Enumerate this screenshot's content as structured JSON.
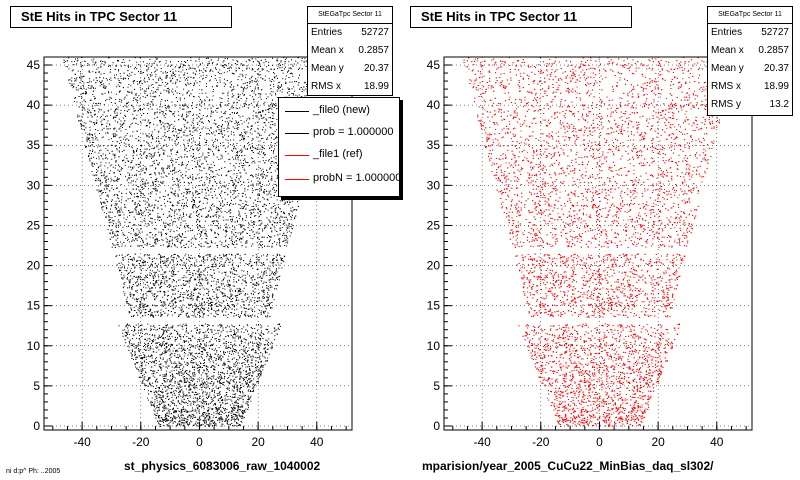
{
  "chart_data": [
    {
      "type": "scatter",
      "title": "StE Hits in TPC Sector 11",
      "xlabel": "st_physics_6083006_raw_1040002",
      "ylabel": "",
      "xlim": [
        -53,
        52
      ],
      "ylim": [
        -0.5,
        46
      ],
      "x_ticks": [
        "-40",
        "-20",
        "0",
        "20",
        "40"
      ],
      "y_ticks": [
        "0",
        "5",
        "10",
        "15",
        "20",
        "25",
        "30",
        "35",
        "40",
        "45"
      ],
      "marker_color": "#000000",
      "grid": true,
      "stats": {
        "header": "StEGaTpc Sector 11",
        "entries": [
          {
            "label": "Entries",
            "value": "52727"
          },
          {
            "label": "Mean x",
            "value": "0.2857"
          },
          {
            "label": "Mean y",
            "value": "20.37"
          },
          {
            "label": "RMS x",
            "value": "18.99"
          }
        ]
      },
      "legend": {
        "placement": "right",
        "entries": [
          {
            "label": "_file0 (new)",
            "color": "#000000"
          },
          {
            "label": "prob = 1.000000",
            "color": "#000000"
          },
          {
            "label": "_file1 (ref)",
            "color": "#ff0000"
          },
          {
            "label": "probN = 1.000000",
            "color": "#ff0000"
          }
        ]
      },
      "series": [
        {
          "shape": "trapezoid",
          "y_range": [
            0,
            46
          ],
          "x_half_width_bottom": 14,
          "x_half_width_top": 47,
          "gap_y": [
            12.8,
            13.6
          ]
        }
      ]
    },
    {
      "type": "scatter",
      "title": "StE Hits in TPC Sector 11",
      "xlabel": "mparision/year_2005_CuCu22_MinBias_daq_sl302/",
      "ylabel": "",
      "xlim": [
        -53,
        52
      ],
      "ylim": [
        -0.5,
        46
      ],
      "x_ticks": [
        "-40",
        "-20",
        "0",
        "20",
        "40"
      ],
      "y_ticks": [
        "0",
        "5",
        "10",
        "15",
        "20",
        "25",
        "30",
        "35",
        "40",
        "45"
      ],
      "marker_color": "#ff0000",
      "grid": true,
      "stats": {
        "header": "StEGaTpc Sector 11",
        "entries": [
          {
            "label": "Entries",
            "value": "52727"
          },
          {
            "label": "Mean x",
            "value": "0.2857"
          },
          {
            "label": "Mean y",
            "value": "20.37"
          },
          {
            "label": "RMS x",
            "value": "18.99"
          },
          {
            "label": "RMS y",
            "value": "13.2"
          }
        ]
      },
      "series": [
        {
          "shape": "trapezoid",
          "y_range": [
            0,
            46
          ],
          "x_half_width_bottom": 14,
          "x_half_width_top": 47,
          "gap_y": [
            12.8,
            13.6
          ]
        }
      ]
    }
  ],
  "corner_text": "ni d:p^ Ph: ..2005"
}
